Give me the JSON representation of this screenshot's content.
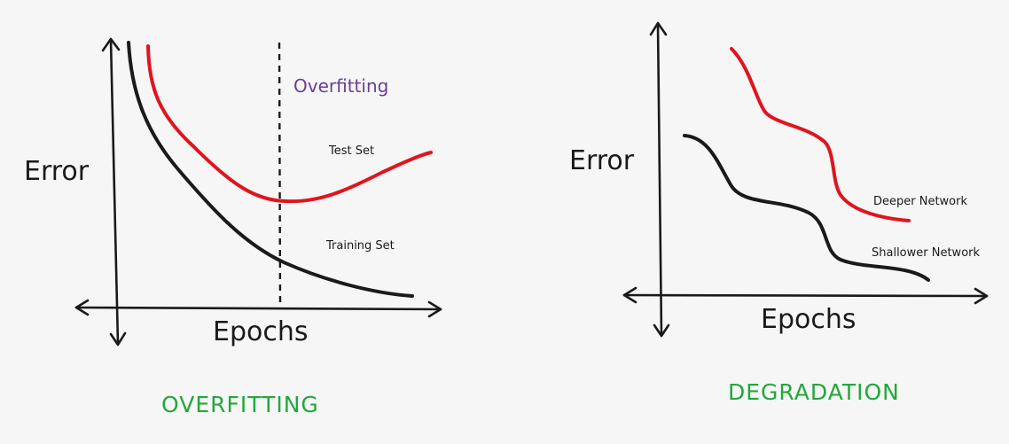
{
  "colors": {
    "background": "#f6f6f6",
    "ink": "#1a1a1a",
    "red_curve": "#e0141e",
    "black_curve": "#1a1a1a",
    "annotation_purple": "#6a3d9a",
    "title_green": "#22a83a"
  },
  "left_panel": {
    "title": "OVERFITTING",
    "y_label": "Error",
    "x_label": "Epochs",
    "annotation": "Overfitting",
    "test_curve_label": "Test Set",
    "training_curve_label": "Training Set"
  },
  "right_panel": {
    "title": "DEGRADATION",
    "y_label": "Error",
    "x_label": "Epochs",
    "deep_curve_label": "Deeper Network",
    "shallow_curve_label": "Shallower Network"
  }
}
